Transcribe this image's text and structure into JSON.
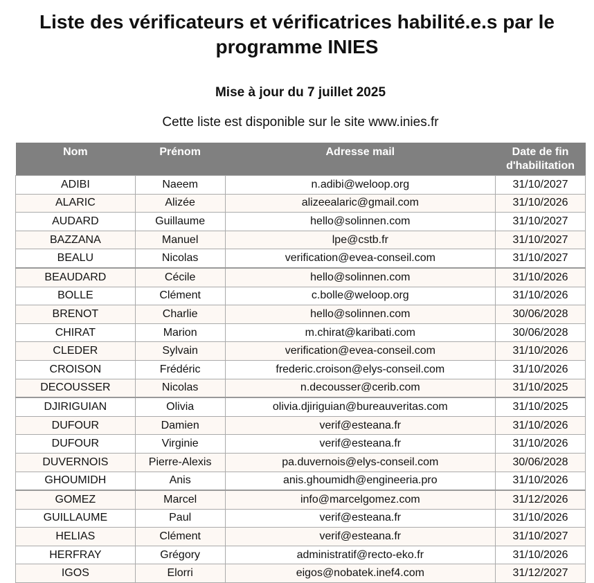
{
  "title": "Liste des vérificateurs et vérificatrices habilité.e.s par le programme INIES",
  "update": "Mise à jour du 7 juillet 2025",
  "availability": "Cette liste est disponible sur le site www.inies.fr",
  "headers": [
    "Nom",
    "Prénom",
    "Adresse mail",
    "Date de fin d'habilitation"
  ],
  "rows": [
    [
      "ADIBI",
      "Naeem",
      "n.adibi@weloop.org",
      "31/10/2027"
    ],
    [
      "ALARIC",
      "Alizée",
      "alizeealaric@gmail.com",
      "31/10/2026"
    ],
    [
      "AUDARD",
      "Guillaume",
      "hello@solinnen.com",
      "31/10/2027"
    ],
    [
      "BAZZANA",
      "Manuel",
      "lpe@cstb.fr",
      "31/10/2027"
    ],
    [
      "BEALU",
      "Nicolas",
      "verification@evea-conseil.com",
      "31/10/2027"
    ],
    [
      "BEAUDARD",
      "Cécile",
      "hello@solinnen.com",
      "31/10/2026"
    ],
    [
      "BOLLE",
      "Clément",
      "c.bolle@weloop.org",
      "31/10/2026"
    ],
    [
      "BRENOT",
      "Charlie",
      "hello@solinnen.com",
      "30/06/2028"
    ],
    [
      "CHIRAT",
      "Marion",
      "m.chirat@karibati.com",
      "30/06/2028"
    ],
    [
      "CLEDER",
      "Sylvain",
      "verification@evea-conseil.com",
      "31/10/2026"
    ],
    [
      "CROISON",
      "Frédéric",
      "frederic.croison@elys-conseil.com",
      "31/10/2026"
    ],
    [
      "DECOUSSER",
      "Nicolas",
      "n.decousser@cerib.com",
      "31/10/2025"
    ],
    [
      "DJIRIGUIAN",
      "Olivia",
      "olivia.djiriguian@bureauveritas.com",
      "31/10/2025"
    ],
    [
      "DUFOUR",
      "Damien",
      "verif@esteana.fr",
      "31/10/2026"
    ],
    [
      "DUFOUR",
      "Virginie",
      "verif@esteana.fr",
      "31/10/2026"
    ],
    [
      "DUVERNOIS",
      "Pierre-Alexis",
      "pa.duvernois@elys-conseil.com",
      "30/06/2028"
    ],
    [
      "GHOUMIDH",
      "Anis",
      "anis.ghoumidh@engineeria.pro",
      "31/10/2026"
    ],
    [
      "GOMEZ",
      "Marcel",
      "info@marcelgomez.com",
      "31/12/2026"
    ],
    [
      "GUILLAUME",
      "Paul",
      "verif@esteana.fr",
      "31/10/2026"
    ],
    [
      "HELIAS",
      "Clément",
      "verif@esteana.fr",
      "31/10/2027"
    ],
    [
      "HERFRAY",
      "Grégory",
      "administratif@recto-eko.fr",
      "31/10/2026"
    ],
    [
      "IGOS",
      "Elorri",
      "eigos@nobatek.inef4.com",
      "31/12/2027"
    ]
  ]
}
